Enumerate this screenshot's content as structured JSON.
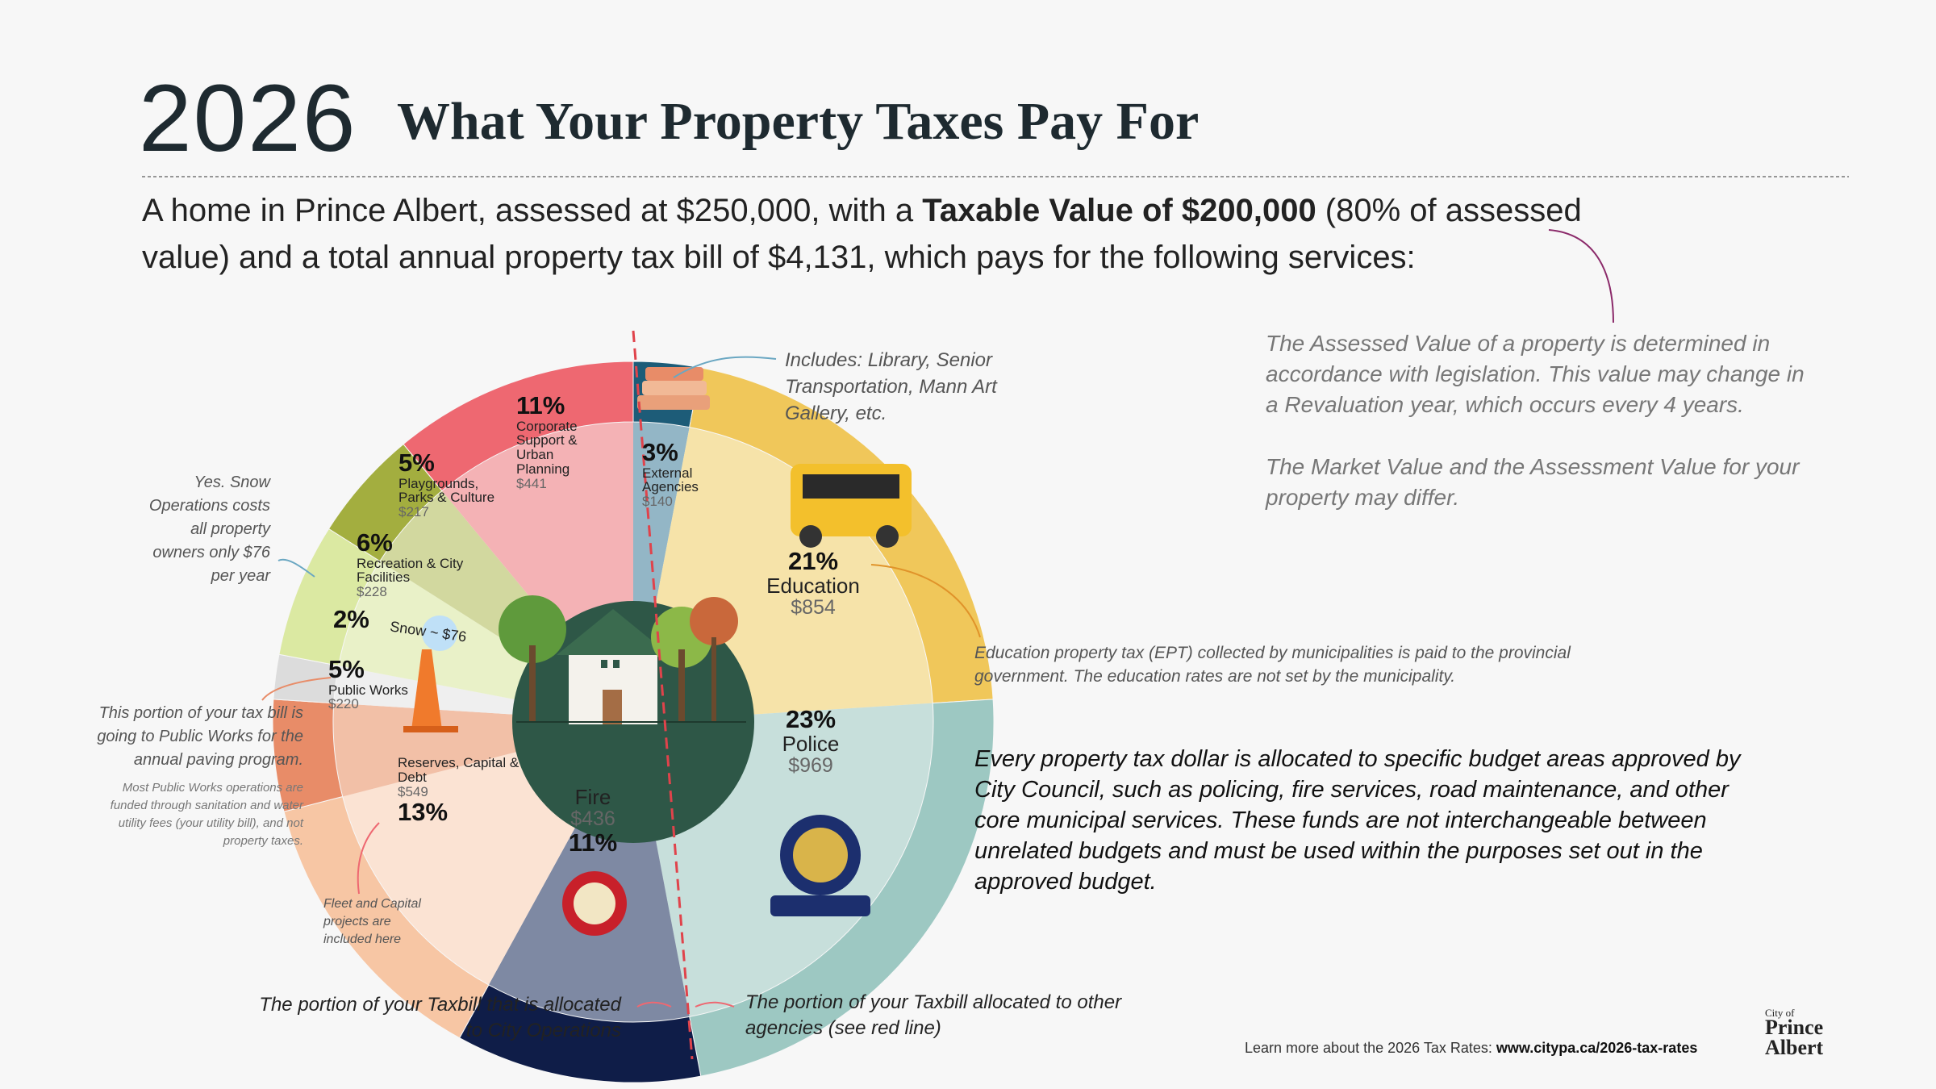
{
  "header": {
    "year": "2026",
    "title": "What Your Property Taxes Pay For",
    "intro": [
      "A home in Prince Albert, assessed at $250,000, with a ",
      "Taxable Value of $200,000",
      " (80% of assessed value) and a total annual property tax bill of $4,131, which pays for the following services:"
    ]
  },
  "chart_data": {
    "type": "pie",
    "categories": [
      "External Agencies",
      "Education",
      "Police",
      "Fire",
      "Reserves, Capital & Debt",
      "Public Works",
      "Snow ~ $76",
      "Recreation & City Facilities",
      "Playgrounds, Parks & Culture",
      "Corporate Support & Urban Planning"
    ],
    "values": [
      3,
      21,
      23,
      11,
      13,
      5,
      2,
      6,
      5,
      11
    ],
    "value_labels": [
      "3%",
      "21%",
      "23%",
      "11%",
      "13%",
      "5%",
      "2%",
      "6%",
      "5%",
      "11%"
    ],
    "amounts": [
      140,
      854,
      969,
      436,
      549,
      220,
      76,
      228,
      217,
      441
    ],
    "amount_labels": [
      "$140",
      "$854",
      "$969",
      "$436",
      "$549",
      "$220",
      null,
      "$228",
      "$217",
      "$441"
    ],
    "colors": [
      "#1d5c78",
      "#f0c75a",
      "#9dc8c2",
      "#0f1d48",
      "#f7c6a4",
      "#e88c68",
      "#dcdcdc",
      "#dbe9a2",
      "#a3ae3f",
      "#ee6871"
    ],
    "light_colors": [
      "#93b6c6",
      "#f6e3a9",
      "#c7dfdb",
      "#7e89a3",
      "#fbe3d3",
      "#f2c0a7",
      "#efefef",
      "#e9f1c8",
      "#d2d89f",
      "#f4b2b5"
    ]
  },
  "notes": {
    "agencies": "Includes: Library, Senior Transportation, Mann Art Gallery, etc.",
    "assessed": "The Assessed Value of a property is determined in accordance with legislation. This value may change in a Revaluation year, which occurs every 4 years.",
    "market": "The Market Value and the Assessment Value for your property may differ.",
    "education": "Education property tax (EPT) collected by municipalities is paid to the provincial government. The education rates are not set by the municipality.",
    "allocation": "Every property tax dollar is allocated to specific budget areas approved by City Council, such as policing, fire services, road maintenance, and other core municipal services. These funds are not interchangeable between unrelated budgets and must be used within the purposes set out in the approved budget.",
    "snow": "Yes. Snow Operations costs all property owners only $76 per year",
    "paving": "This portion of your tax bill is going to Public Works for the annual paving program.",
    "utility": "Most Public Works operations are funded through sanitation and water utility fees (your utility bill), and not property taxes.",
    "fleet": "Fleet and Capital projects are included here",
    "city_ops": "The portion of your Taxbill that is allocated to City Operations",
    "other_agencies": "The portion of your Taxbill allocated to other agencies (see red line)"
  },
  "footer": {
    "text": "Learn more about the 2026 Tax Rates: ",
    "link": "www.citypa.ca/2026-tax-rates"
  },
  "logo": [
    "City of",
    "Prince",
    "Albert"
  ]
}
